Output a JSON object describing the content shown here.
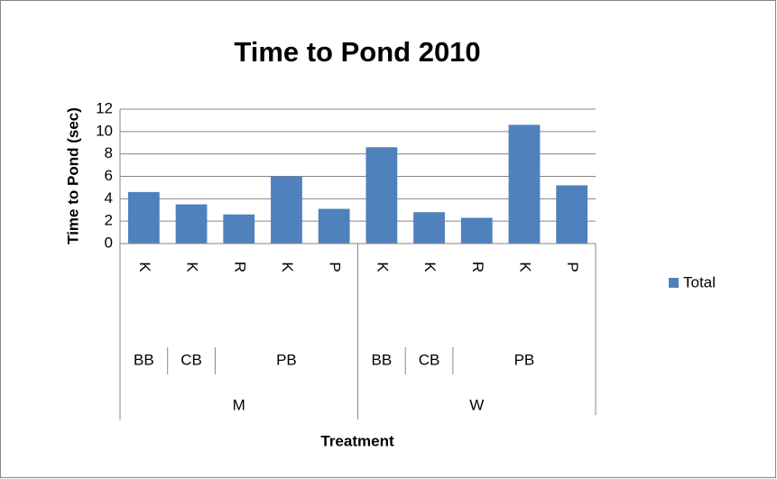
{
  "chart_data": {
    "type": "bar",
    "title": "Time to Pond 2010",
    "y_label": "Time to Pond (sec)",
    "x_label": "Treatment",
    "category_groups": [
      {
        "name": "M",
        "groups": [
          {
            "name": "BB",
            "categories": [
              "K"
            ]
          },
          {
            "name": "CB",
            "categories": [
              "K"
            ]
          },
          {
            "name": "PB",
            "categories": [
              "R",
              "K",
              "P"
            ]
          }
        ]
      },
      {
        "name": "W",
        "groups": [
          {
            "name": "BB",
            "categories": [
              "K"
            ]
          },
          {
            "name": "CB",
            "categories": [
              "K"
            ]
          },
          {
            "name": "PB",
            "categories": [
              "R",
              "K",
              "P"
            ]
          }
        ]
      }
    ],
    "series": [
      {
        "name": "Total",
        "color": "#4f81bd",
        "values": [
          4.6,
          3.5,
          2.6,
          6.0,
          3.1,
          8.6,
          2.8,
          2.3,
          10.6,
          5.2
        ]
      }
    ],
    "ylim": [
      0,
      12
    ],
    "yticks": [
      0,
      2,
      4,
      6,
      8,
      10,
      12
    ],
    "grid": true,
    "legend": "right"
  }
}
